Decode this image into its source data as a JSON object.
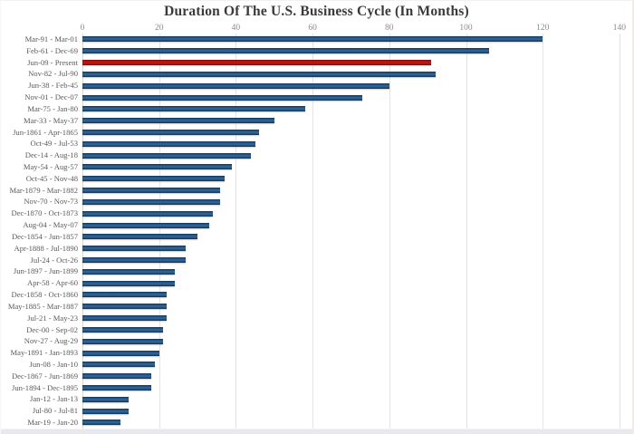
{
  "chart_data": {
    "type": "bar",
    "orientation": "horizontal",
    "title": "Duration Of The U.S. Business Cycle (In Months)",
    "xlabel": "",
    "ylabel": "",
    "xlim": [
      0,
      140
    ],
    "x_ticks": [
      0,
      20,
      40,
      60,
      80,
      100,
      120,
      140
    ],
    "grid": true,
    "axis_position": "top",
    "bar_color": "#1F4E79",
    "highlight_color": "#C00000",
    "highlight_index": 2,
    "categories": [
      "Mar-91 - Mar-01",
      "Feb-61 - Dec-69",
      "Jun-09 - Present",
      "Nov-82 - Jul-90",
      "Jun-38 - Feb-45",
      "Nov-01 - Dec-07",
      "Mar-75 - Jan-80",
      "Mar-33 - May-37",
      "Jun-1861 - Apr-1865",
      "Oct-49 - Jul-53",
      "Dec-14 - Aug-18",
      "May-54 - Aug-57",
      "Oct-45 - Nov-48",
      "Mar-1879 - Mar-1882",
      "Nov-70 - Nov-73",
      "Dec-1870 - Oct-1873",
      "Aug-04 - May-07",
      "Dec-1854 - Jun-1857",
      "Apr-1888 - Jul-1890",
      "Jul-24 - Oct-26",
      "Jun-1897 - Jun-1899",
      "Apr-58 - Apr-60",
      "Dec-1858 - Oct-1860",
      "May-1885 - Mar-1887",
      "Jul-21 - May-23",
      "Dec-00 - Sep-02",
      "Nov-27 - Aug-29",
      "May-1891 - Jan-1893",
      "Jun-08 - Jan-10",
      "Dec-1867 - Jun-1869",
      "Jun-1894 - Dec-1895",
      "Jan-12 - Jan-13",
      "Jul-80 - Jul-81",
      "Mar-19 - Jan-20"
    ],
    "values": [
      120,
      106,
      91,
      92,
      80,
      73,
      58,
      50,
      46,
      45,
      44,
      39,
      37,
      36,
      36,
      34,
      33,
      30,
      27,
      27,
      24,
      24,
      22,
      22,
      22,
      21,
      21,
      20,
      19,
      18,
      18,
      12,
      12,
      10
    ]
  }
}
